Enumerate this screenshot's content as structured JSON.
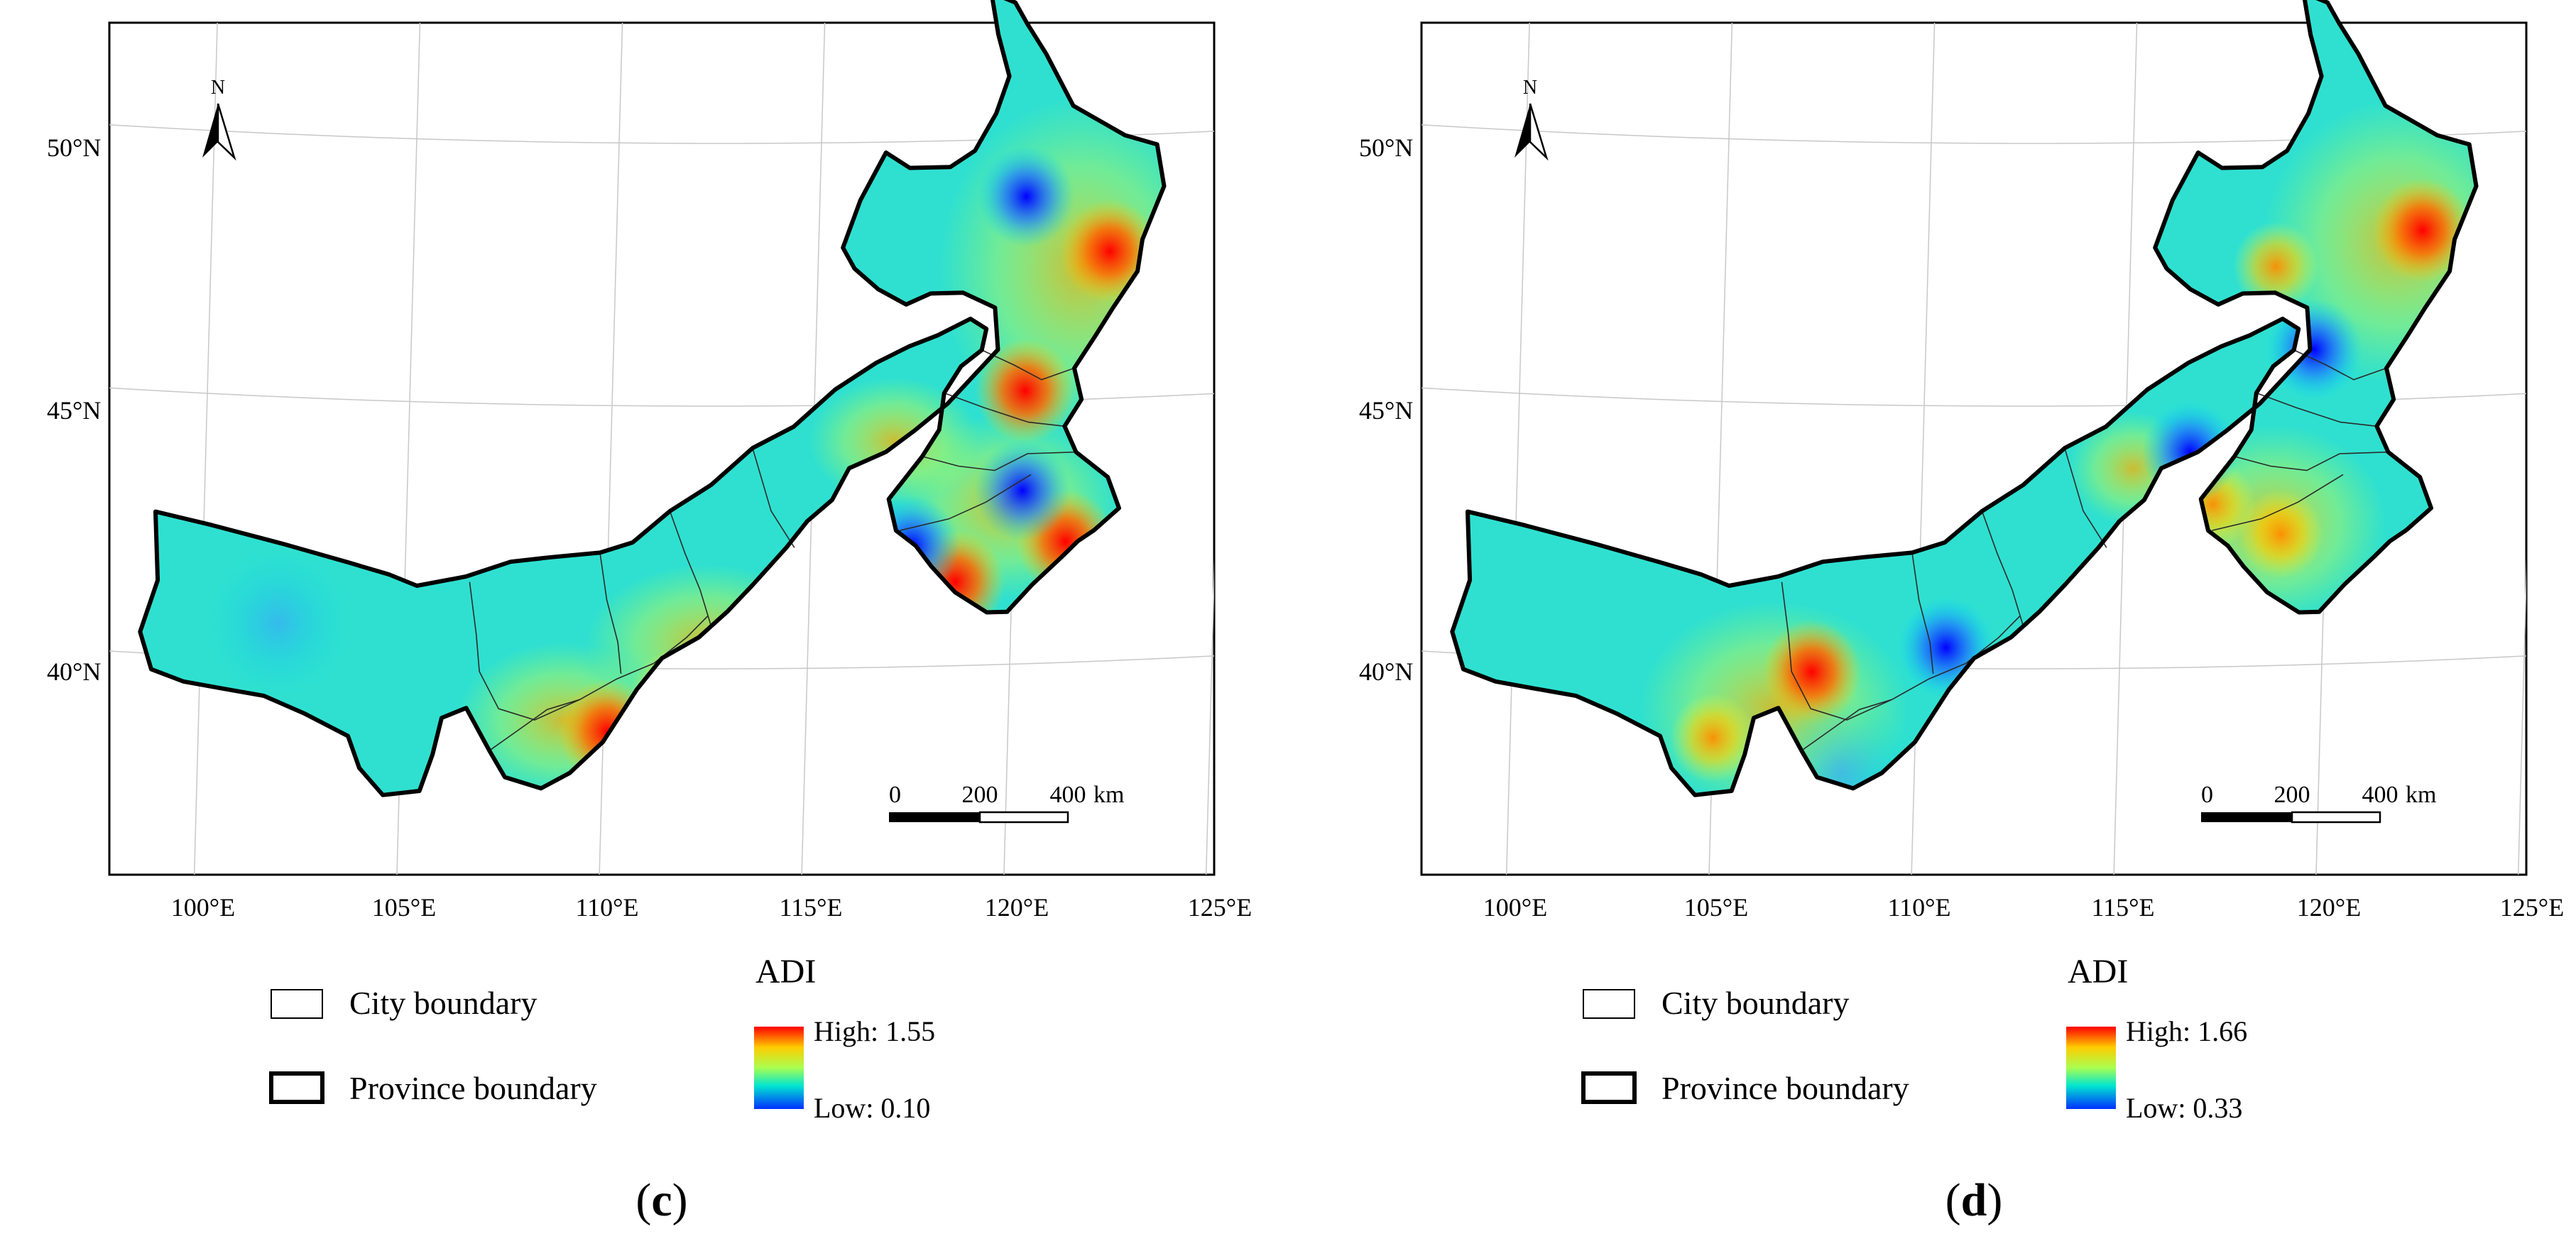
{
  "panels": [
    {
      "id": "c",
      "label": "c",
      "lat_labels": [
        "50°N",
        "45°N",
        "40°N"
      ],
      "lon_labels": [
        "100°E",
        "105°E",
        "110°E",
        "115°E",
        "120°E",
        "125°E"
      ],
      "north_label": "N",
      "scale_bar": {
        "ticks": [
          "0",
          "200",
          "400"
        ],
        "unit": "km"
      },
      "legend": {
        "city_boundary": "City boundary",
        "province_boundary": "Province boundary",
        "title": "ADI",
        "high": "High: 1.55",
        "low": "Low: 0.10"
      },
      "hotspots": [
        {
          "lon": 120.2,
          "lat": 45.2,
          "level": "high"
        },
        {
          "lon": 118.6,
          "lat": 41.6,
          "level": "high"
        },
        {
          "lon": 110.1,
          "lat": 38.8,
          "level": "high"
        },
        {
          "lon": 121.3,
          "lat": 42.3,
          "level": "high"
        },
        {
          "lon": 122.2,
          "lat": 47.8,
          "level": "high"
        },
        {
          "lon": 111.7,
          "lat": 39.5,
          "level": "mid-high"
        },
        {
          "lon": 120.1,
          "lat": 48.9,
          "level": "low"
        },
        {
          "lon": 117.5,
          "lat": 42.3,
          "level": "low"
        },
        {
          "lon": 120.2,
          "lat": 43.3,
          "level": "low"
        },
        {
          "lon": 101.9,
          "lat": 40.7,
          "level": "mid-low"
        }
      ]
    },
    {
      "id": "d",
      "label": "d",
      "lat_labels": [
        "50°N",
        "45°N",
        "40°N"
      ],
      "lon_labels": [
        "100°E",
        "105°E",
        "110°E",
        "115°E",
        "120°E",
        "125°E"
      ],
      "north_label": "N",
      "scale_bar": {
        "ticks": [
          "0",
          "200",
          "400"
        ],
        "unit": "km"
      },
      "legend": {
        "city_boundary": "City boundary",
        "province_boundary": "Province boundary",
        "title": "ADI",
        "high": "High: 1.66",
        "low": "Low: 0.33"
      },
      "hotspots": [
        {
          "lon": 122.2,
          "lat": 48.2,
          "level": "high"
        },
        {
          "lon": 107.4,
          "lat": 39.9,
          "level": "high"
        },
        {
          "lon": 118.6,
          "lat": 47.6,
          "level": "mid-high"
        },
        {
          "lon": 105.0,
          "lat": 38.6,
          "level": "mid-high"
        },
        {
          "lon": 117.2,
          "lat": 43.1,
          "level": "mid-high"
        },
        {
          "lon": 118.9,
          "lat": 42.5,
          "level": "mid-high"
        },
        {
          "lon": 116.6,
          "lat": 44.1,
          "level": "low"
        },
        {
          "lon": 113.0,
          "lat": 39.8,
          "level": "low"
        },
        {
          "lon": 119.6,
          "lat": 46.0,
          "level": "low"
        },
        {
          "lon": 110.7,
          "lat": 40.4,
          "level": "low"
        },
        {
          "lon": 108.2,
          "lat": 38.0,
          "level": "mid-low"
        }
      ]
    }
  ]
}
